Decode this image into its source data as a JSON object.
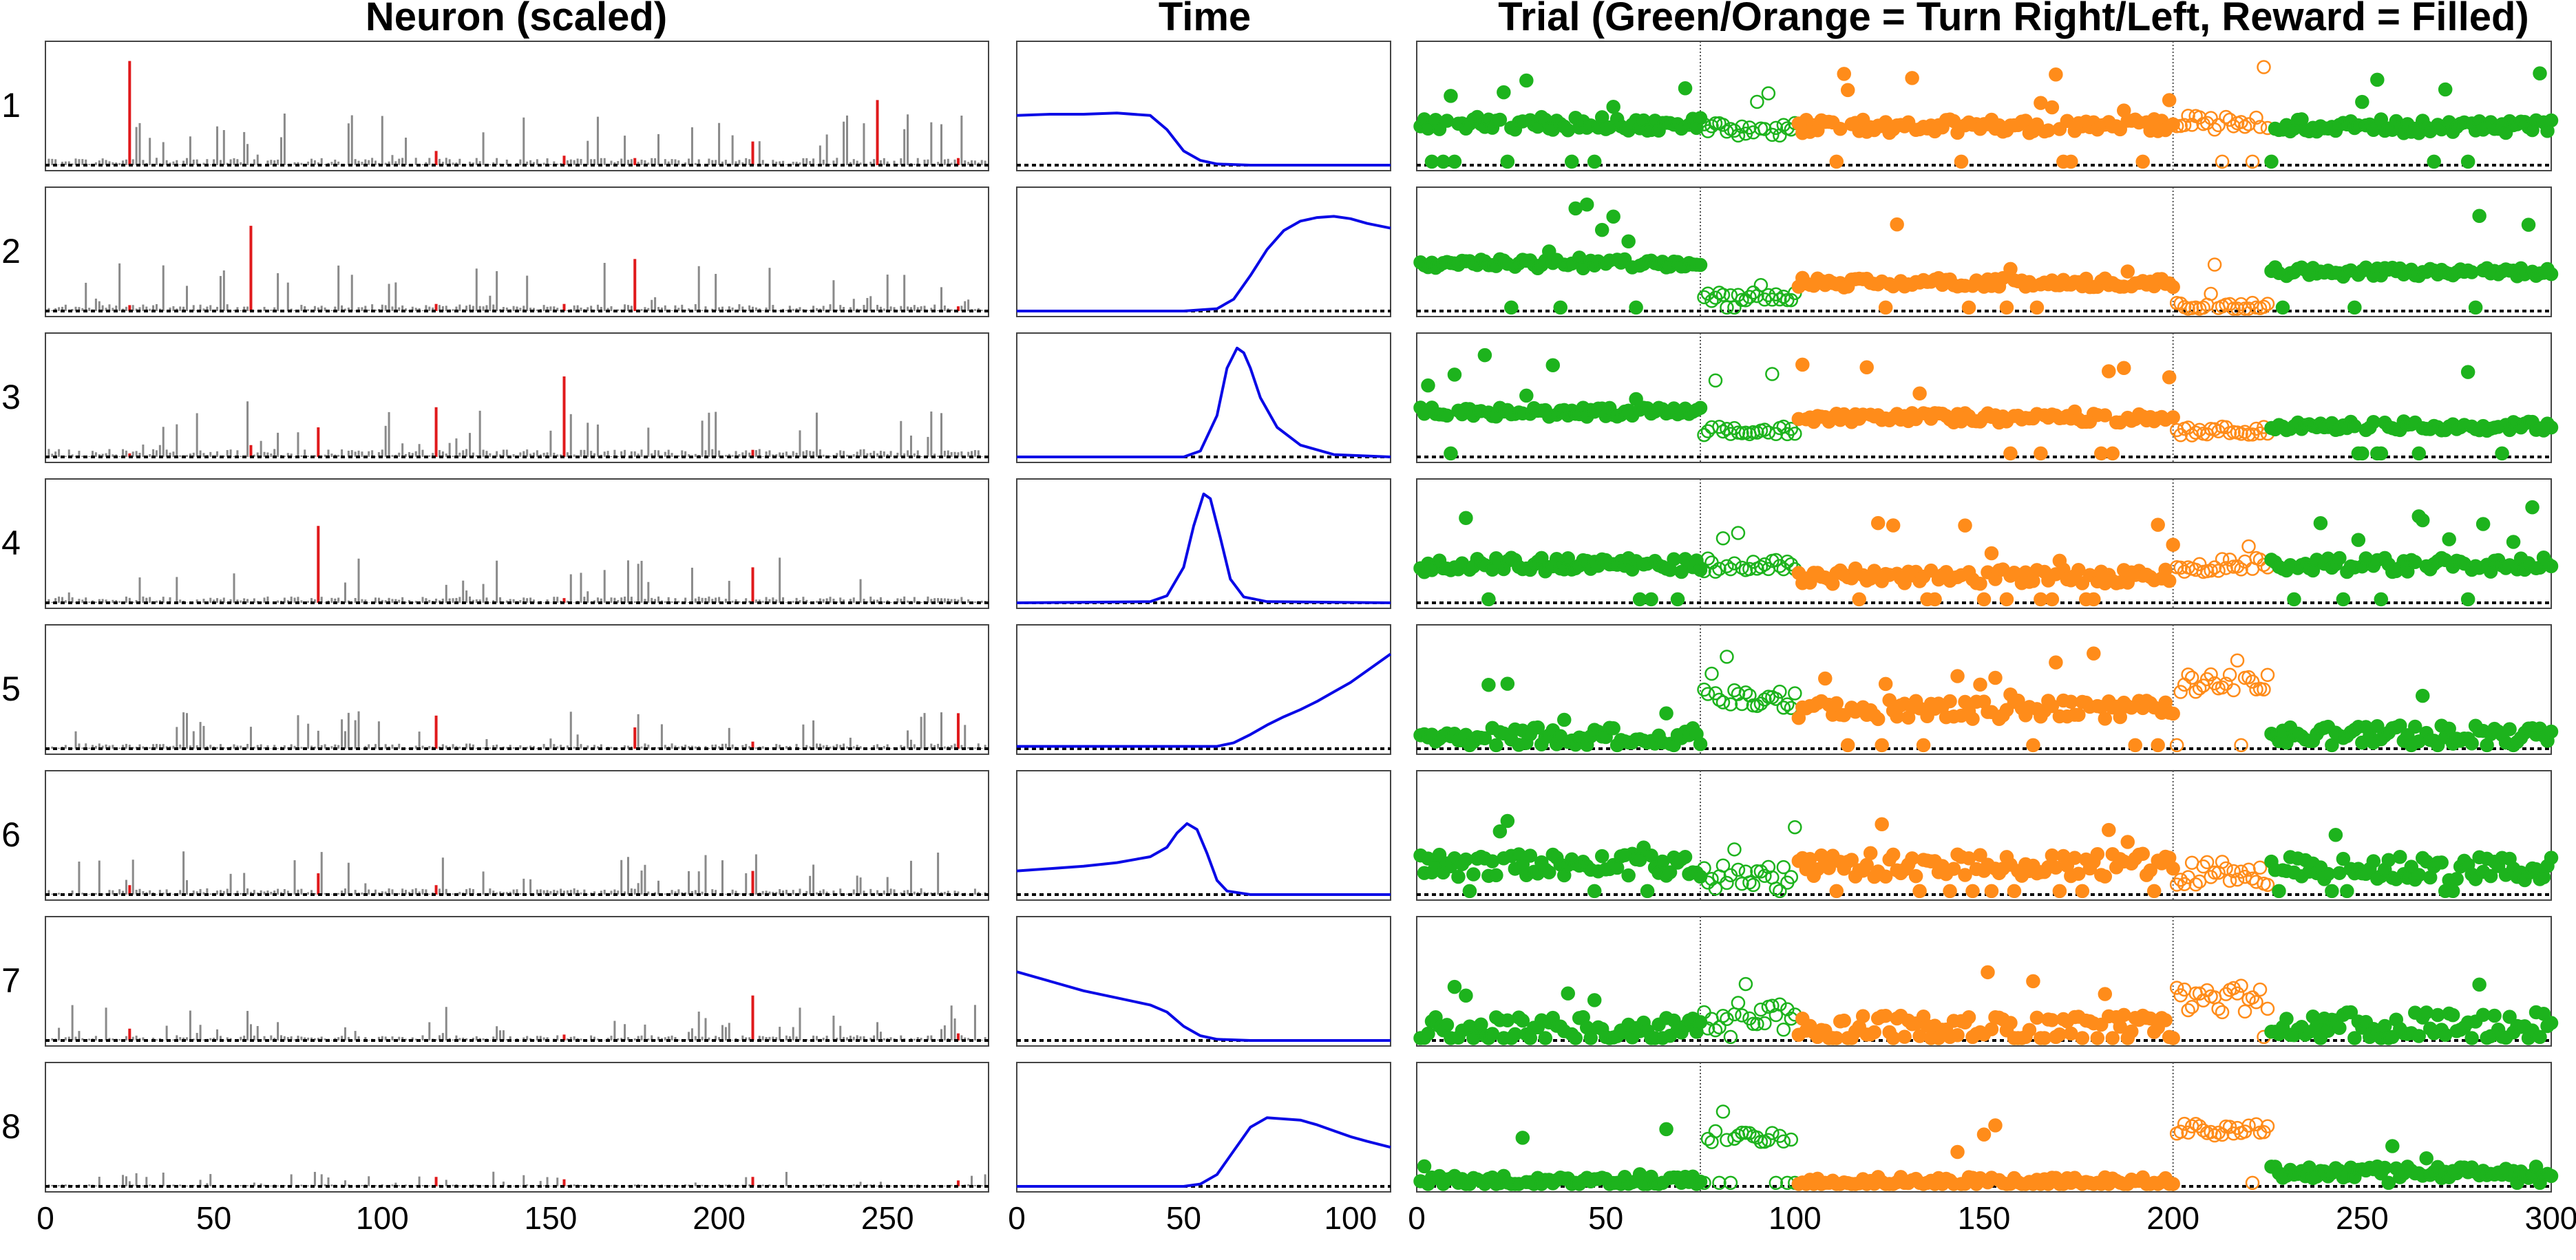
{
  "panels": {
    "neuron": {
      "title": "Neuron (scaled)",
      "xticks": [
        "0",
        "50",
        "100",
        "150",
        "200",
        "250"
      ],
      "xlim": [
        0,
        280
      ]
    },
    "time": {
      "title": "Time",
      "xticks": [
        "0",
        "50",
        "100"
      ],
      "xlim": [
        0,
        112
      ]
    },
    "trial": {
      "title": "Trial (Green/Orange = Turn Right/Left, Reward = Filled)",
      "xticks": [
        "0",
        "50",
        "100",
        "150",
        "200",
        "250",
        "300"
      ],
      "xlim": [
        0,
        300
      ],
      "block_boundaries": [
        75,
        200
      ]
    }
  },
  "row_labels": [
    "1",
    "2",
    "3",
    "4",
    "5",
    "6",
    "7",
    "8"
  ],
  "colors": {
    "bars": "#8a8a8a",
    "highlight": "#e0191b",
    "time_curve": "#0a0ae6",
    "right": "#1db31d",
    "left": "#ff8c1a",
    "baseline": "#000000"
  },
  "chart_data": [
    {
      "type": "bar",
      "title": "Neuron (scaled)",
      "xlim": [
        0,
        280
      ],
      "n_neurons": 280,
      "description_of_components": [
        "1",
        "2",
        "3",
        "4",
        "5",
        "6",
        "7",
        "8"
      ],
      "highlight_neurons": [
        {
          "component": "1",
          "neurons": [
            25,
            116,
            154,
            175,
            210,
            247,
            271
          ],
          "values": [
            0.88,
            0.12,
            0.08,
            0.06,
            0.2,
            0.55,
            0.06
          ]
        },
        {
          "component": "2",
          "neurons": [
            25,
            61,
            116,
            154,
            175,
            271
          ],
          "values": [
            0.05,
            0.72,
            0.06,
            0.06,
            0.44,
            0.04
          ]
        },
        {
          "component": "3",
          "neurons": [
            25,
            61,
            81,
            116,
            154,
            210
          ],
          "values": [
            0.03,
            0.1,
            0.25,
            0.42,
            0.68,
            0.06
          ]
        },
        {
          "component": "4",
          "neurons": [
            81,
            154,
            210
          ],
          "values": [
            0.65,
            0.04,
            0.3
          ]
        },
        {
          "component": "5",
          "neurons": [
            116,
            175,
            210,
            271
          ],
          "values": [
            0.28,
            0.18,
            0.06,
            0.3
          ]
        },
        {
          "component": "6",
          "neurons": [
            25,
            81,
            116,
            210
          ],
          "values": [
            0.08,
            0.18,
            0.08,
            0.2
          ]
        },
        {
          "component": "7",
          "neurons": [
            25,
            154,
            210,
            271
          ],
          "values": [
            0.1,
            0.05,
            0.38,
            0.06
          ]
        },
        {
          "component": "8",
          "neurons": [
            116,
            154,
            210,
            271
          ],
          "values": [
            0.08,
            0.06,
            0.08,
            0.05
          ]
        }
      ],
      "typical_bar_height": [
        0.14,
        0.13,
        0.15,
        0.12,
        0.1,
        0.12,
        0.1,
        0.04
      ],
      "ylim": [
        0,
        1
      ]
    },
    {
      "type": "line",
      "title": "Time",
      "xlim": [
        0,
        112
      ],
      "ylim": [
        0,
        1
      ],
      "series": [
        {
          "component": "1",
          "x": [
            0,
            10,
            20,
            30,
            40,
            45,
            50,
            55,
            60,
            70,
            80,
            112
          ],
          "y": [
            0.42,
            0.43,
            0.43,
            0.44,
            0.42,
            0.3,
            0.12,
            0.04,
            0.01,
            0,
            0,
            0
          ]
        },
        {
          "component": "2",
          "x": [
            0,
            50,
            60,
            65,
            70,
            75,
            80,
            85,
            90,
            95,
            100,
            105,
            112
          ],
          "y": [
            0,
            0,
            0.02,
            0.1,
            0.3,
            0.52,
            0.68,
            0.76,
            0.79,
            0.8,
            0.78,
            0.74,
            0.7
          ]
        },
        {
          "component": "3",
          "x": [
            0,
            50,
            55,
            60,
            63,
            66,
            68,
            70,
            73,
            78,
            85,
            95,
            112
          ],
          "y": [
            0,
            0,
            0.05,
            0.35,
            0.75,
            0.92,
            0.88,
            0.75,
            0.5,
            0.25,
            0.1,
            0.02,
            0
          ]
        },
        {
          "component": "4",
          "x": [
            0,
            40,
            45,
            50,
            53,
            56,
            58,
            61,
            64,
            68,
            75,
            112
          ],
          "y": [
            0,
            0.01,
            0.06,
            0.3,
            0.65,
            0.92,
            0.88,
            0.55,
            0.2,
            0.05,
            0.01,
            0
          ]
        },
        {
          "component": "5",
          "x": [
            0,
            60,
            65,
            70,
            75,
            80,
            85,
            90,
            95,
            100,
            105,
            112
          ],
          "y": [
            0.02,
            0.02,
            0.05,
            0.12,
            0.2,
            0.27,
            0.33,
            0.4,
            0.48,
            0.56,
            0.66,
            0.8
          ]
        },
        {
          "component": "6",
          "x": [
            0,
            10,
            20,
            30,
            40,
            45,
            48,
            51,
            54,
            57,
            60,
            63,
            70,
            112
          ],
          "y": [
            0.2,
            0.22,
            0.24,
            0.27,
            0.32,
            0.4,
            0.52,
            0.6,
            0.55,
            0.35,
            0.12,
            0.03,
            0,
            0
          ]
        },
        {
          "component": "7",
          "x": [
            0,
            10,
            20,
            30,
            40,
            45,
            50,
            55,
            60,
            70,
            112
          ],
          "y": [
            0.58,
            0.5,
            0.42,
            0.36,
            0.3,
            0.24,
            0.12,
            0.04,
            0.01,
            0,
            0
          ]
        },
        {
          "component": "8",
          "x": [
            0,
            50,
            55,
            60,
            65,
            70,
            75,
            80,
            85,
            90,
            95,
            100,
            105,
            112
          ],
          "y": [
            0,
            0,
            0.02,
            0.1,
            0.3,
            0.5,
            0.58,
            0.57,
            0.56,
            0.52,
            0.47,
            0.42,
            0.38,
            0.33
          ]
        }
      ]
    },
    {
      "type": "scatter",
      "title": "Trial (Green/Orange = Turn Right/Left, Reward = Filled)",
      "xlim": [
        0,
        300
      ],
      "ylim": [
        0,
        1
      ],
      "block_boundaries": [
        75,
        200
      ],
      "blocks": [
        {
          "trials": [
            1,
            75
          ],
          "turn": "right",
          "rewarded": true
        },
        {
          "trials": [
            76,
            100
          ],
          "turn": "right",
          "rewarded": false
        },
        {
          "trials": [
            101,
            200
          ],
          "turn": "left",
          "rewarded": true
        },
        {
          "trials": [
            201,
            225
          ],
          "turn": "left",
          "rewarded": false
        },
        {
          "trials": [
            226,
            300
          ],
          "turn": "right",
          "rewarded": true
        }
      ],
      "series": [
        {
          "component": "1",
          "block_levels": [
            0.35,
            0.3,
            0.33,
            0.36,
            0.33
          ],
          "noise": 0.06
        },
        {
          "component": "2",
          "block_levels": [
            0.4,
            0.12,
            0.24,
            0.03,
            0.33
          ],
          "noise": 0.04
        },
        {
          "component": "3",
          "block_levels": [
            0.38,
            0.22,
            0.33,
            0.22,
            0.26
          ],
          "noise": 0.04
        },
        {
          "component": "4",
          "block_levels": [
            0.32,
            0.32,
            0.22,
            0.32,
            0.32
          ],
          "noise": 0.06
        },
        {
          "component": "5",
          "block_levels": [
            0.1,
            0.42,
            0.33,
            0.55,
            0.12
          ],
          "noise": 0.08
        },
        {
          "component": "6",
          "block_levels": [
            0.25,
            0.15,
            0.25,
            0.18,
            0.22
          ],
          "noise": 0.1
        },
        {
          "component": "7",
          "block_levels": [
            0.08,
            0.2,
            0.1,
            0.35,
            0.12
          ],
          "noise": 0.12
        },
        {
          "component": "8",
          "block_levels": [
            0.04,
            0.42,
            0.03,
            0.48,
            0.12
          ],
          "noise": 0.05
        }
      ]
    }
  ]
}
